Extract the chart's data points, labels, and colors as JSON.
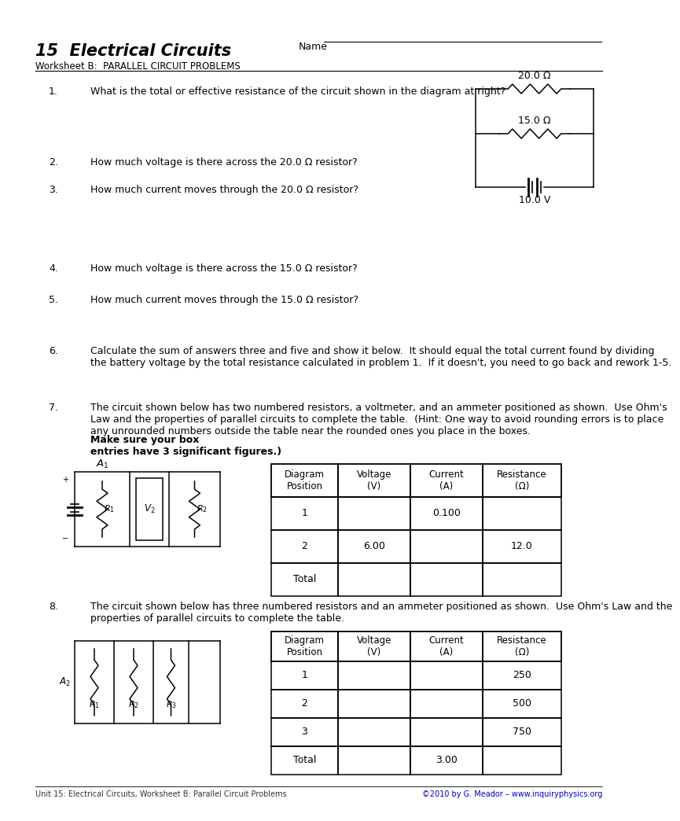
{
  "title": "15  Electrical Circuits",
  "subtitle": "Worksheet B:  PARALLEL CIRCUIT PROBLEMS",
  "name_label": "Name",
  "bg_color": "#ffffff",
  "q1_text": "What is the total or effective resistance of the circuit shown in the diagram at right?",
  "q2_text": "How much voltage is there across the 20.0 Ω resistor?",
  "q3_text": "How much current moves through the 20.0 Ω resistor?",
  "q4_text": "How much voltage is there across the 15.0 Ω resistor?",
  "q5_text": "How much current moves through the 15.0 Ω resistor?",
  "q6_text": "Calculate the sum of answers three and five and show it below.  It should equal the total current found by dividing\nthe battery voltage by the total resistance calculated in problem 1.  If it doesn't, you need to go back and rework 1-5.",
  "q7_intro": "The circuit shown below has two numbered resistors, a voltmeter, and an ammeter positioned as shown.  Use Ohm's\nLaw and the properties of parallel circuits to complete the table.  (Hint: One way to avoid rounding errors is to place\nany unrounded numbers outside the table near the rounded ones you place in the boxes.  ",
  "q7_bold": "Make sure your box\nentries have 3 significant figures.",
  "q7_paren": ")",
  "q8_text": "The circuit shown below has three numbered resistors and an ammeter positioned as shown.  Use Ohm's Law and the\nproperties of parallel circuits to complete the table.",
  "footer_left": "Unit 15: Electrical Circuits, Worksheet B: Parallel Circuit Problems",
  "footer_right": "©2010 by G. Meador – www.inquiryphysics.org",
  "circuit1_20ohm": "20.0 Ω",
  "circuit1_15ohm": "15.0 Ω",
  "circuit1_10v": "10.0 V",
  "table7_headers": [
    "Diagram\nPosition",
    "Voltage\n(V)",
    "Current\n(A)",
    "Resistance\n(Ω)"
  ],
  "table7_rows": [
    [
      "1",
      "",
      "0.100",
      ""
    ],
    [
      "2",
      "6.00",
      "",
      "12.0"
    ],
    [
      "Total",
      "",
      "",
      ""
    ]
  ],
  "table8_headers": [
    "Diagram\nPosition",
    "Voltage\n(V)",
    "Current\n(A)",
    "Resistance\n(Ω)"
  ],
  "table8_rows": [
    [
      "1",
      "",
      "",
      "250"
    ],
    [
      "2",
      "",
      "",
      "500"
    ],
    [
      "3",
      "",
      "",
      "750"
    ],
    [
      "Total",
      "",
      "3.00",
      ""
    ]
  ]
}
